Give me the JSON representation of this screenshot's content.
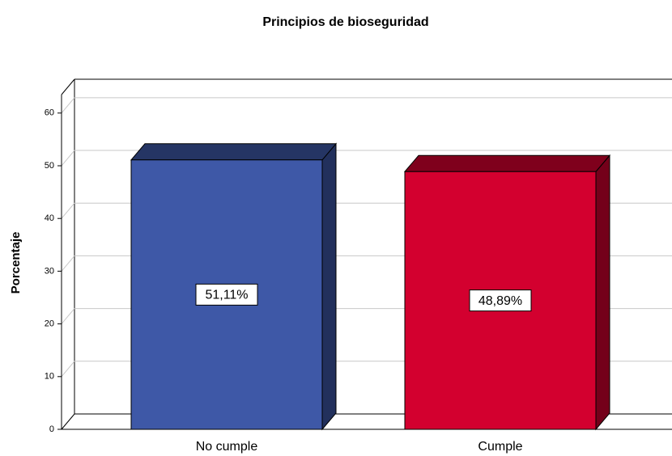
{
  "chart_data": {
    "type": "bar3d",
    "title": "Principios de bioseguridad",
    "y_axis_label": "Porcentaje",
    "categories": [
      "No cumple",
      "Cumple"
    ],
    "values": [
      51.11,
      48.89
    ],
    "value_labels": [
      "51,11%",
      "48,89%"
    ],
    "colors": [
      "#3e58a7",
      "#d3002f"
    ],
    "ylim": [
      0,
      63.5
    ],
    "yticks": [
      0,
      10,
      20,
      30,
      40,
      50,
      60
    ],
    "grid": true
  }
}
